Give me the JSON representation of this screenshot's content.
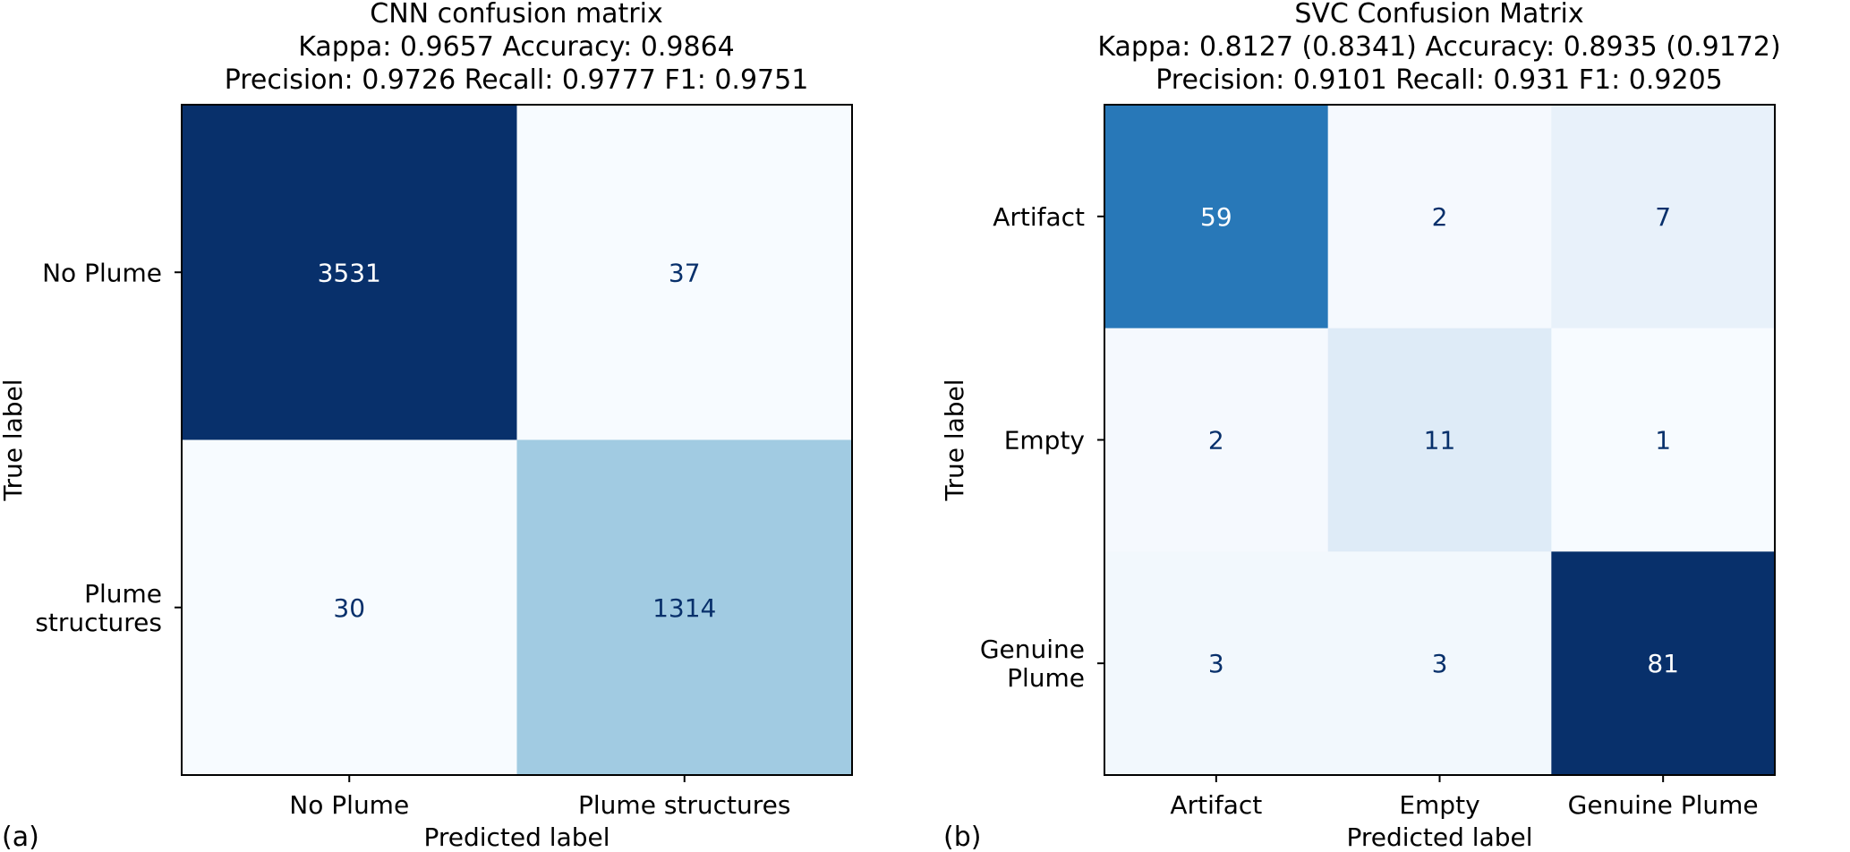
{
  "chart_data": [
    {
      "type": "heatmap",
      "panel_label": "(a)",
      "title": "CNN confusion matrix",
      "metrics_line1": "Kappa: 0.9657      Accuracy: 0.9864",
      "metrics_line2": "Precision:  0.9726      Recall:  0.9777      F1:  0.9751",
      "xlabel": "Predicted label",
      "ylabel": "True label",
      "categories": [
        "No Plume",
        "Plume structures"
      ],
      "y_tick_labels": [
        [
          "No Plume"
        ],
        [
          "Plume",
          "structures"
        ]
      ],
      "x_tick_labels": [
        "No Plume",
        "Plume structures"
      ],
      "values": [
        [
          3531,
          37
        ],
        [
          30,
          1314
        ]
      ],
      "colormap": "Blues"
    },
    {
      "type": "heatmap",
      "panel_label": "(b)",
      "title": "SVC Confusion Matrix",
      "metrics_line1": "Kappa: 0.8127  (0.8341)      Accuracy: 0.8935  (0.9172)",
      "metrics_line2": "Precision:  0.9101      Recall:  0.931      F1:  0.9205",
      "xlabel": "Predicted label",
      "ylabel": "True label",
      "categories": [
        "Artifact",
        "Empty",
        "Genuine Plume"
      ],
      "y_tick_labels": [
        [
          "Artifact"
        ],
        [
          "Empty"
        ],
        [
          "Genuine",
          "Plume"
        ]
      ],
      "x_tick_labels": [
        "Artifact",
        "Empty",
        "Genuine Plume"
      ],
      "values": [
        [
          59,
          2,
          7
        ],
        [
          2,
          11,
          1
        ],
        [
          3,
          3,
          81
        ]
      ],
      "colormap": "Blues"
    }
  ]
}
